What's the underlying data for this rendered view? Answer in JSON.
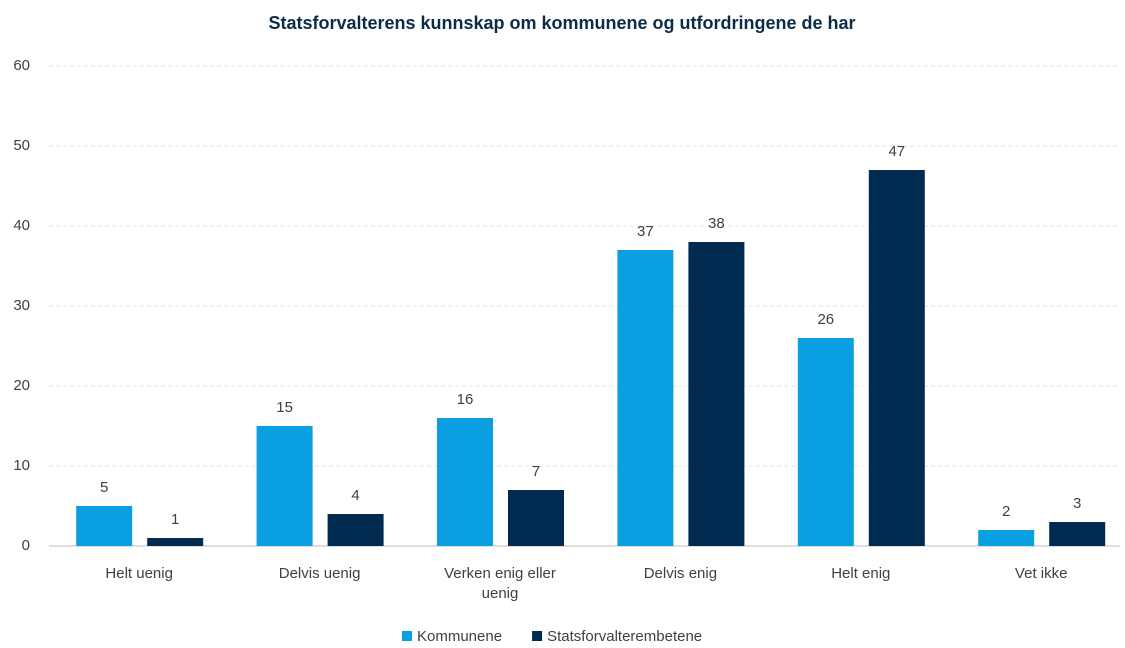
{
  "chart_data": {
    "type": "bar",
    "title": "Statsforvalterens kunnskap om kommunene og utfordringene de har",
    "categories": [
      "Helt uenig",
      "Delvis uenig",
      "Verken enig eller uenig",
      "Delvis enig",
      "Helt enig",
      "Vet ikke"
    ],
    "series": [
      {
        "name": "Kommunene",
        "color": "#0a9fe0",
        "values": [
          5,
          15,
          16,
          37,
          26,
          2
        ]
      },
      {
        "name": "Statsforvalterembetene",
        "color": "#002a4f",
        "values": [
          1,
          4,
          7,
          38,
          47,
          3
        ]
      }
    ],
    "ylim": [
      0,
      60
    ],
    "yticks": [
      0,
      10,
      20,
      30,
      40,
      50,
      60
    ],
    "grid": true,
    "legend": "bottom"
  }
}
